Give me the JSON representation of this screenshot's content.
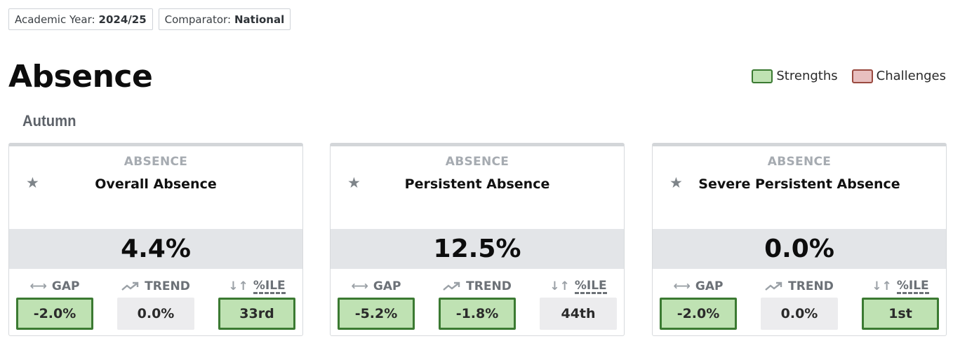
{
  "filters": {
    "year_label": "Academic Year:",
    "year_value": "2024/25",
    "comparator_label": "Comparator:",
    "comparator_value": "National"
  },
  "page_title": "Absence",
  "legend": {
    "strengths": "Strengths",
    "challenges": "Challenges",
    "strengths_color": "#bfe2b3",
    "challenges_color": "#e8bfbf"
  },
  "section": {
    "title": "Autumn"
  },
  "metric_labels": {
    "gap": "GAP",
    "trend": "TREND",
    "percentile": "%ILE"
  },
  "icons": {
    "star": "star-icon",
    "gap": "double-arrow-icon",
    "trend": "trend-up-icon",
    "percentile": "sort-arrows-icon"
  },
  "cards": [
    {
      "category": "ABSENCE",
      "name": "Overall Absence",
      "value": "4.4%",
      "gap": {
        "value": "-2.0%",
        "status": "strength"
      },
      "trend": {
        "value": "0.0%",
        "status": "neutral"
      },
      "percentile": {
        "value": "33rd",
        "status": "strength"
      }
    },
    {
      "category": "ABSENCE",
      "name": "Persistent Absence",
      "value": "12.5%",
      "gap": {
        "value": "-5.2%",
        "status": "strength"
      },
      "trend": {
        "value": "-1.8%",
        "status": "strength"
      },
      "percentile": {
        "value": "44th",
        "status": "neutral"
      }
    },
    {
      "category": "ABSENCE",
      "name": "Severe Persistent Absence",
      "value": "0.0%",
      "gap": {
        "value": "-2.0%",
        "status": "strength"
      },
      "trend": {
        "value": "0.0%",
        "status": "neutral"
      },
      "percentile": {
        "value": "1st",
        "status": "strength"
      }
    }
  ]
}
